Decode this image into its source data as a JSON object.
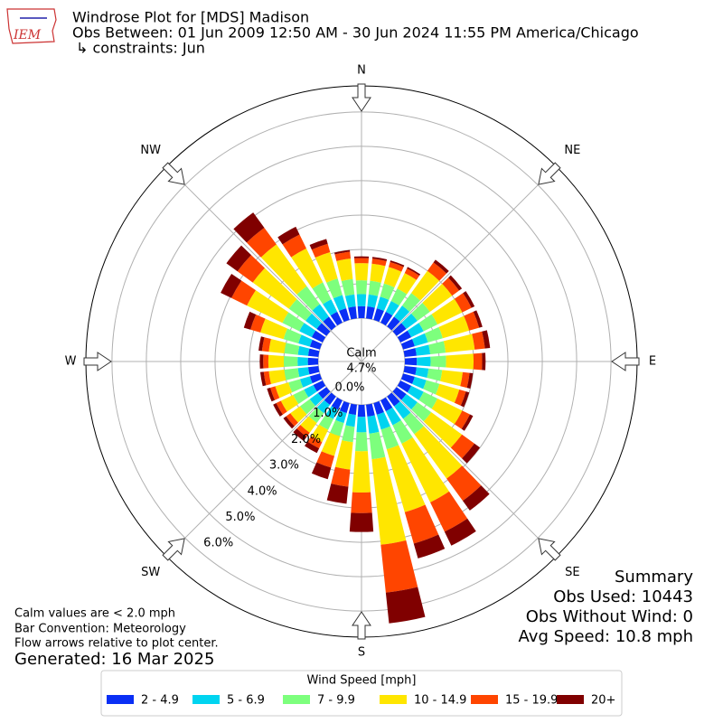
{
  "chart_data": {
    "type": "windrose",
    "title": "Windrose Plot for [MDS] Madison",
    "subtitle": "Obs Between: 01 Jun 2009 12:50 AM - 30 Jun 2024 11:55 PM America/Chicago",
    "constraints": "↳ constraints: Jun",
    "logo_text": "IEM",
    "x": [
      0,
      10,
      20,
      30,
      40,
      50,
      60,
      70,
      80,
      90,
      100,
      110,
      120,
      130,
      140,
      150,
      160,
      170,
      180,
      190,
      200,
      210,
      220,
      230,
      240,
      250,
      260,
      270,
      280,
      290,
      300,
      310,
      320,
      330,
      340,
      350
    ],
    "series": [
      {
        "name": "2 - 4.9",
        "color": "#0a2ff5",
        "values": [
          0.35,
          0.35,
          0.35,
          0.35,
          0.35,
          0.35,
          0.35,
          0.35,
          0.35,
          0.35,
          0.35,
          0.35,
          0.35,
          0.35,
          0.35,
          0.35,
          0.35,
          0.35,
          0.35,
          0.3,
          0.3,
          0.3,
          0.3,
          0.3,
          0.3,
          0.3,
          0.3,
          0.3,
          0.3,
          0.3,
          0.35,
          0.35,
          0.35,
          0.35,
          0.35,
          0.35
        ]
      },
      {
        "name": "5 - 6.9",
        "color": "#00d4f0",
        "values": [
          0.35,
          0.35,
          0.35,
          0.35,
          0.4,
          0.4,
          0.4,
          0.4,
          0.4,
          0.4,
          0.35,
          0.35,
          0.4,
          0.4,
          0.45,
          0.45,
          0.45,
          0.5,
          0.45,
          0.35,
          0.3,
          0.3,
          0.3,
          0.3,
          0.3,
          0.3,
          0.3,
          0.3,
          0.3,
          0.35,
          0.4,
          0.4,
          0.45,
          0.4,
          0.4,
          0.35
        ]
      },
      {
        "name": "7 - 9.9",
        "color": "#7dff7d",
        "values": [
          0.4,
          0.4,
          0.4,
          0.4,
          0.45,
          0.45,
          0.45,
          0.45,
          0.45,
          0.45,
          0.4,
          0.4,
          0.45,
          0.5,
          0.55,
          0.6,
          0.6,
          0.75,
          0.55,
          0.45,
          0.4,
          0.35,
          0.35,
          0.35,
          0.35,
          0.35,
          0.4,
          0.4,
          0.4,
          0.45,
          0.55,
          0.6,
          0.65,
          0.55,
          0.5,
          0.45
        ]
      },
      {
        "name": "10 - 14.9",
        "color": "#ffe600",
        "values": [
          0.5,
          0.5,
          0.5,
          0.5,
          0.8,
          0.8,
          0.8,
          0.8,
          0.85,
          0.8,
          0.6,
          0.6,
          0.8,
          1.1,
          1.6,
          1.9,
          1.9,
          2.5,
          1.2,
          0.8,
          0.6,
          0.4,
          0.35,
          0.35,
          0.4,
          0.4,
          0.45,
          0.45,
          0.45,
          0.7,
          1.15,
          1.3,
          1.5,
          1.1,
          0.8,
          0.6
        ]
      },
      {
        "name": "15 - 19.9",
        "color": "#ff4500",
        "values": [
          0.15,
          0.15,
          0.15,
          0.15,
          0.3,
          0.25,
          0.3,
          0.3,
          0.3,
          0.25,
          0.2,
          0.2,
          0.25,
          0.45,
          0.8,
          0.95,
          0.95,
          1.4,
          0.6,
          0.5,
          0.35,
          0.2,
          0.15,
          0.15,
          0.15,
          0.15,
          0.15,
          0.15,
          0.2,
          0.3,
          0.5,
          0.55,
          0.6,
          0.45,
          0.25,
          0.2
        ]
      },
      {
        "name": "20+",
        "color": "#800000",
        "values": [
          0.05,
          0.05,
          0.05,
          0.05,
          0.1,
          0.1,
          0.1,
          0.1,
          0.15,
          0.1,
          0.1,
          0.1,
          0.1,
          0.2,
          0.35,
          0.45,
          0.45,
          0.9,
          0.55,
          0.5,
          0.35,
          0.15,
          0.15,
          0.1,
          0.1,
          0.1,
          0.1,
          0.1,
          0.1,
          0.2,
          0.35,
          0.4,
          0.55,
          0.25,
          0.15,
          0.05
        ]
      }
    ],
    "ylim": [
      0,
      6.76
    ],
    "yticks": [
      {
        "value": 0,
        "label": "0.0%"
      },
      {
        "value": 1,
        "label": "1.0%"
      },
      {
        "value": 2,
        "label": "2.0%"
      },
      {
        "value": 3,
        "label": "3.0%"
      },
      {
        "value": 4,
        "label": "4.0%"
      },
      {
        "value": 5,
        "label": "5.0%"
      },
      {
        "value": 6,
        "label": "6.0%"
      }
    ],
    "grid": true,
    "compass_labels": [
      "N",
      "NE",
      "E",
      "SE",
      "S",
      "SW",
      "W",
      "NW"
    ],
    "calm_label": "Calm",
    "calm_value": {
      "value": 4.7,
      "label": "4.7%"
    },
    "notes": [
      "Calm values are < 2.0 mph",
      "Bar Convention: Meteorology",
      "Flow arrows relative to plot center."
    ],
    "generated": "Generated: 16 Mar 2025",
    "summary": [
      "Summary",
      "Obs Used: 10443",
      "Obs Without Wind: 0",
      "Avg Speed: 10.8 mph"
    ],
    "legend_title": "Wind Speed [mph]",
    "legend": "bottom"
  }
}
